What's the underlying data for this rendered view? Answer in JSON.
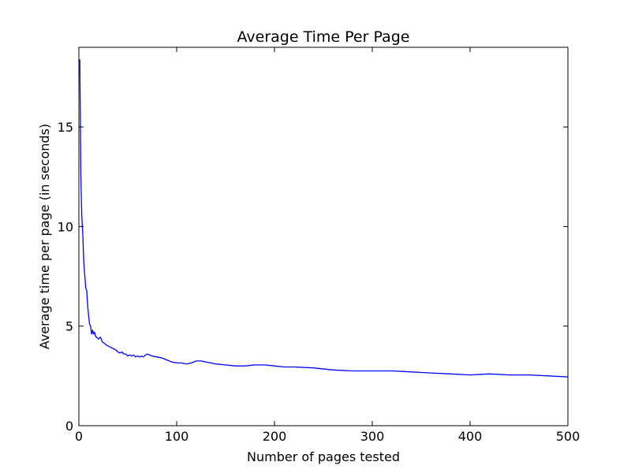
{
  "chart_data": {
    "type": "line",
    "title": "Average Time Per Page",
    "xlabel": "Number of pages tested",
    "ylabel": "Average time per page (in seconds)",
    "xlim": [
      0,
      500
    ],
    "ylim": [
      0,
      19
    ],
    "xticks": [
      0,
      100,
      200,
      300,
      400,
      500
    ],
    "yticks": [
      0,
      5,
      10,
      15
    ],
    "grid": false,
    "legend": "none",
    "line_color": "#0000ff",
    "series": [
      {
        "x": [
          1,
          2,
          3,
          4,
          5,
          6,
          7,
          8,
          9,
          10,
          11,
          12,
          13,
          14,
          15,
          16,
          17,
          18,
          19,
          20,
          22,
          24,
          26,
          28,
          30,
          32,
          34,
          36,
          38,
          40,
          42,
          44,
          46,
          48,
          50,
          52,
          54,
          56,
          58,
          60,
          62,
          64,
          66,
          68,
          70,
          75,
          80,
          85,
          90,
          95,
          100,
          105,
          110,
          115,
          120,
          125,
          130,
          135,
          140,
          150,
          160,
          170,
          180,
          190,
          200,
          210,
          220,
          240,
          260,
          280,
          300,
          320,
          340,
          360,
          380,
          400,
          420,
          440,
          460,
          480,
          500
        ],
        "y": [
          18.4,
          12.5,
          10.5,
          9.6,
          8.2,
          7.6,
          6.9,
          6.8,
          6.0,
          5.5,
          5.1,
          5.0,
          4.6,
          4.8,
          4.6,
          4.7,
          4.5,
          4.45,
          4.4,
          4.35,
          4.45,
          4.2,
          4.15,
          4.05,
          4.0,
          3.95,
          3.9,
          3.85,
          3.8,
          3.7,
          3.65,
          3.7,
          3.6,
          3.6,
          3.5,
          3.55,
          3.5,
          3.55,
          3.45,
          3.5,
          3.45,
          3.5,
          3.45,
          3.55,
          3.6,
          3.5,
          3.45,
          3.4,
          3.3,
          3.2,
          3.15,
          3.15,
          3.1,
          3.15,
          3.25,
          3.25,
          3.2,
          3.15,
          3.1,
          3.05,
          3.0,
          3.0,
          3.05,
          3.05,
          3.0,
          2.95,
          2.95,
          2.9,
          2.8,
          2.75,
          2.75,
          2.75,
          2.7,
          2.65,
          2.6,
          2.55,
          2.6,
          2.55,
          2.55,
          2.5,
          2.45
        ]
      }
    ]
  }
}
